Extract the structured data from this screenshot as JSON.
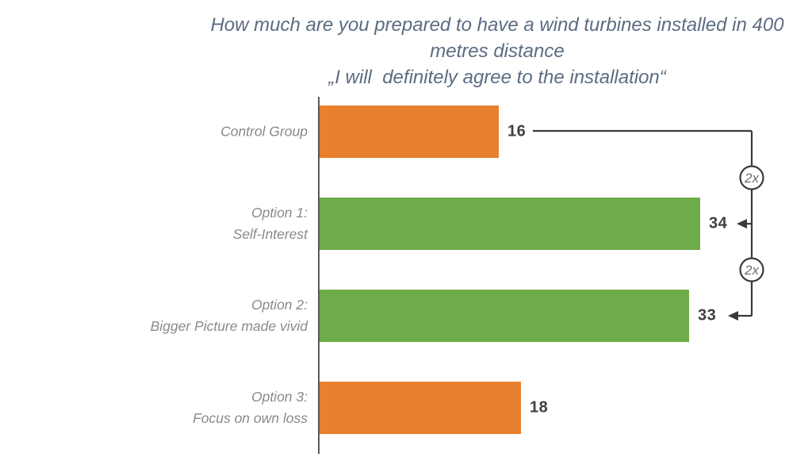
{
  "title_lines": [
    "How much are you prepared to have a wind turbines installed in 400",
    "metres distance"
  ],
  "subtitle": "„I will  definitely agree to the installation“",
  "chart_data": {
    "type": "bar",
    "orientation": "horizontal",
    "title": "How much are you prepared to have a wind turbines installed in 400 metres distance",
    "subtitle": "„I will  definitely agree to the installation“",
    "categories": [
      "Control Group",
      "Option 1: Self-Interest",
      "Option 2: Bigger Picture made vivid",
      "Option 3: Focus on own loss"
    ],
    "category_lines": [
      [
        "Control Group"
      ],
      [
        "Option 1:",
        "Self-Interest"
      ],
      [
        "Option 2:",
        "Bigger Picture made vivid"
      ],
      [
        "Option 3:",
        "Focus on own loss"
      ]
    ],
    "values": [
      16,
      34,
      33,
      18
    ],
    "bar_colors": [
      "#E8802D",
      "#6EAC49",
      "#6EAC49",
      "#E8802D"
    ],
    "xlim": [
      0,
      40
    ],
    "gridlines": false,
    "value_labels_shown": true,
    "legend": false
  },
  "annotations": {
    "source_category": "Control Group",
    "targets": [
      {
        "category": "Option 1: Self-Interest",
        "label": "2x"
      },
      {
        "category": "Option 2: Bigger Picture made vivid",
        "label": "2x"
      }
    ]
  },
  "colors": {
    "orange": "#E8802D",
    "green": "#6EAC49",
    "title_text": "#5B6C82",
    "category_text": "#8A8A8A",
    "value_text": "#3F3F3F",
    "axis_line": "#58595B",
    "connector": "#3A3A3A",
    "badge_text": "#6E6E6E",
    "background": "#FFFFFF"
  }
}
